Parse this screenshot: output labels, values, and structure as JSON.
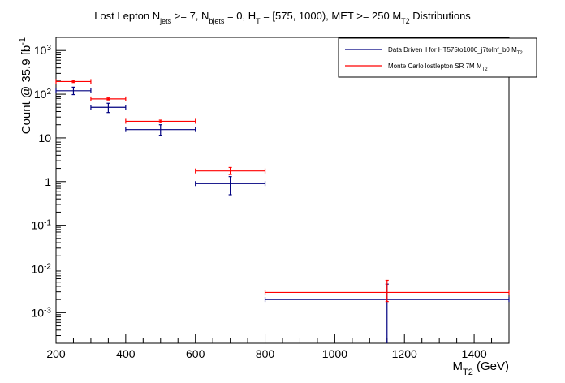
{
  "chart_data": {
    "type": "scatter",
    "title_parts": [
      {
        "t": "Lost Lepton N"
      },
      {
        "t": "jets",
        "sub": true
      },
      {
        "t": " >= 7, N"
      },
      {
        "t": "bjets",
        "sub": true
      },
      {
        "t": " = 0, H"
      },
      {
        "t": "T",
        "sub": true
      },
      {
        "t": " = [575, 1000), MET >= 250 M"
      },
      {
        "t": "T2",
        "sub": true
      },
      {
        "t": " Distributions"
      }
    ],
    "xlabel_parts": [
      {
        "t": "M"
      },
      {
        "t": "T2",
        "sub": true
      },
      {
        "t": " (GeV)"
      }
    ],
    "ylabel_parts": [
      {
        "t": "Count @ 35.9 fb"
      },
      {
        "t": "-1",
        "sup": true
      }
    ],
    "xlim": [
      200,
      1500
    ],
    "ylim": [
      0.0002,
      2000
    ],
    "yscale": "log",
    "x_ticks": [
      200,
      400,
      600,
      800,
      1000,
      1200,
      1400
    ],
    "y_tick_labels": [
      {
        "v": 0.001,
        "base": "10",
        "exp": "-3"
      },
      {
        "v": 0.01,
        "base": "10",
        "exp": "-2"
      },
      {
        "v": 0.1,
        "base": "10",
        "exp": "-1"
      },
      {
        "v": 1,
        "base": "1",
        "exp": ""
      },
      {
        "v": 10,
        "base": "10",
        "exp": ""
      },
      {
        "v": 100,
        "base": "10",
        "exp": "2"
      },
      {
        "v": 1000,
        "base": "10",
        "exp": "3"
      }
    ],
    "grid": false,
    "legend_position": "top-right",
    "series": [
      {
        "name_parts": [
          {
            "t": "Data Driven ll for HT575to1000_j7toInf_b0 M"
          },
          {
            "t": "T2",
            "sub": true
          }
        ],
        "color": "#000080",
        "points": [
          {
            "xlo": 200,
            "xhi": 300,
            "y": 120,
            "ylo": 98,
            "yhi": 145
          },
          {
            "xlo": 300,
            "xhi": 400,
            "y": 50,
            "ylo": 38,
            "yhi": 62
          },
          {
            "xlo": 400,
            "xhi": 600,
            "y": 15.5,
            "ylo": 11.5,
            "yhi": 20
          },
          {
            "xlo": 600,
            "xhi": 800,
            "y": 0.9,
            "ylo": 0.5,
            "yhi": 1.3
          },
          {
            "xlo": 800,
            "xhi": 1500,
            "y": 0.002,
            "ylo": 0.0002,
            "yhi": 0.0045
          }
        ]
      },
      {
        "name_parts": [
          {
            "t": "Monte Carlo lostlepton SR 7M M"
          },
          {
            "t": "T2",
            "sub": true
          }
        ],
        "color": "#ff0000",
        "points": [
          {
            "xlo": 200,
            "xhi": 300,
            "y": 195,
            "ylo": 185,
            "yhi": 205
          },
          {
            "xlo": 300,
            "xhi": 400,
            "y": 78,
            "ylo": 74,
            "yhi": 82
          },
          {
            "xlo": 400,
            "xhi": 600,
            "y": 24,
            "ylo": 22.5,
            "yhi": 25.5
          },
          {
            "xlo": 600,
            "xhi": 800,
            "y": 1.75,
            "ylo": 1.45,
            "yhi": 2.1
          },
          {
            "xlo": 800,
            "xhi": 1500,
            "y": 0.0029,
            "ylo": 0.0018,
            "yhi": 0.0055
          }
        ]
      }
    ]
  }
}
